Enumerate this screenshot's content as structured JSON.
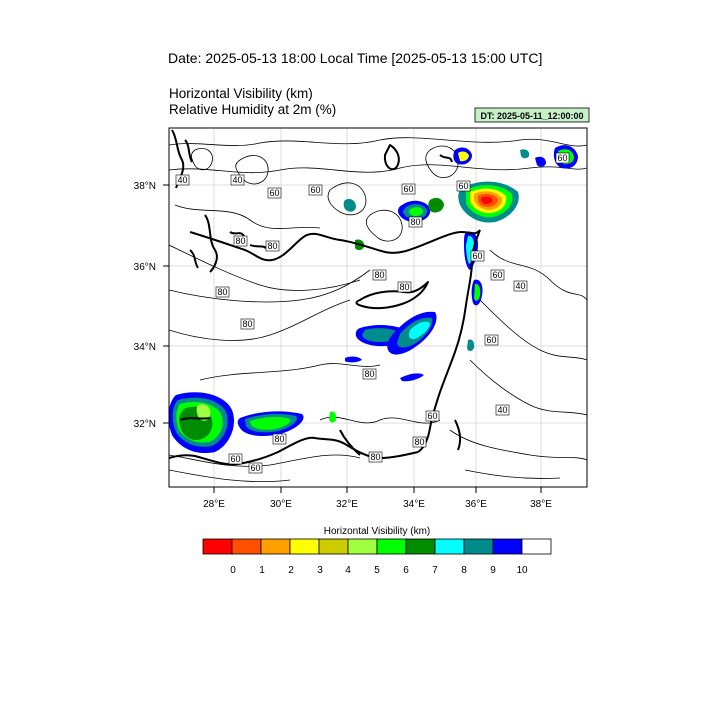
{
  "header": {
    "date_line": "Date: 2025-05-13  18:00 Local Time [2025-05-13  15:00 UTC]",
    "field1": "Horizontal Visibility   (km)",
    "field2": "Relative Humidity at 2m   (%)",
    "dt_badge": "DT: 2025-05-11_12:00:00"
  },
  "map": {
    "lat_labels": [
      "38°N",
      "36°N",
      "34°N",
      "32°N"
    ],
    "lon_labels": [
      "28°E",
      "30°E",
      "32°E",
      "34°E",
      "36°E",
      "38°E"
    ],
    "contour_labels": [
      "40",
      "40",
      "60",
      "60",
      "60",
      "60",
      "60",
      "80",
      "80",
      "80",
      "80",
      "80",
      "80",
      "60",
      "40",
      "60",
      "80",
      "60",
      "80",
      "60",
      "40",
      "80",
      "80",
      "60",
      "60",
      "80"
    ]
  },
  "legend": {
    "title": "Horizontal Visibility  (km)",
    "tick_labels": [
      "0",
      "1",
      "2",
      "3",
      "4",
      "5",
      "6",
      "7",
      "8",
      "9",
      "10"
    ],
    "colors": [
      "#ff0000",
      "#ff5000",
      "#ffa000",
      "#ffff00",
      "#cccc00",
      "#a0ff40",
      "#00ff00",
      "#008c00",
      "#00ffff",
      "#008c8c",
      "#0000ff",
      "#ffffff"
    ]
  }
}
